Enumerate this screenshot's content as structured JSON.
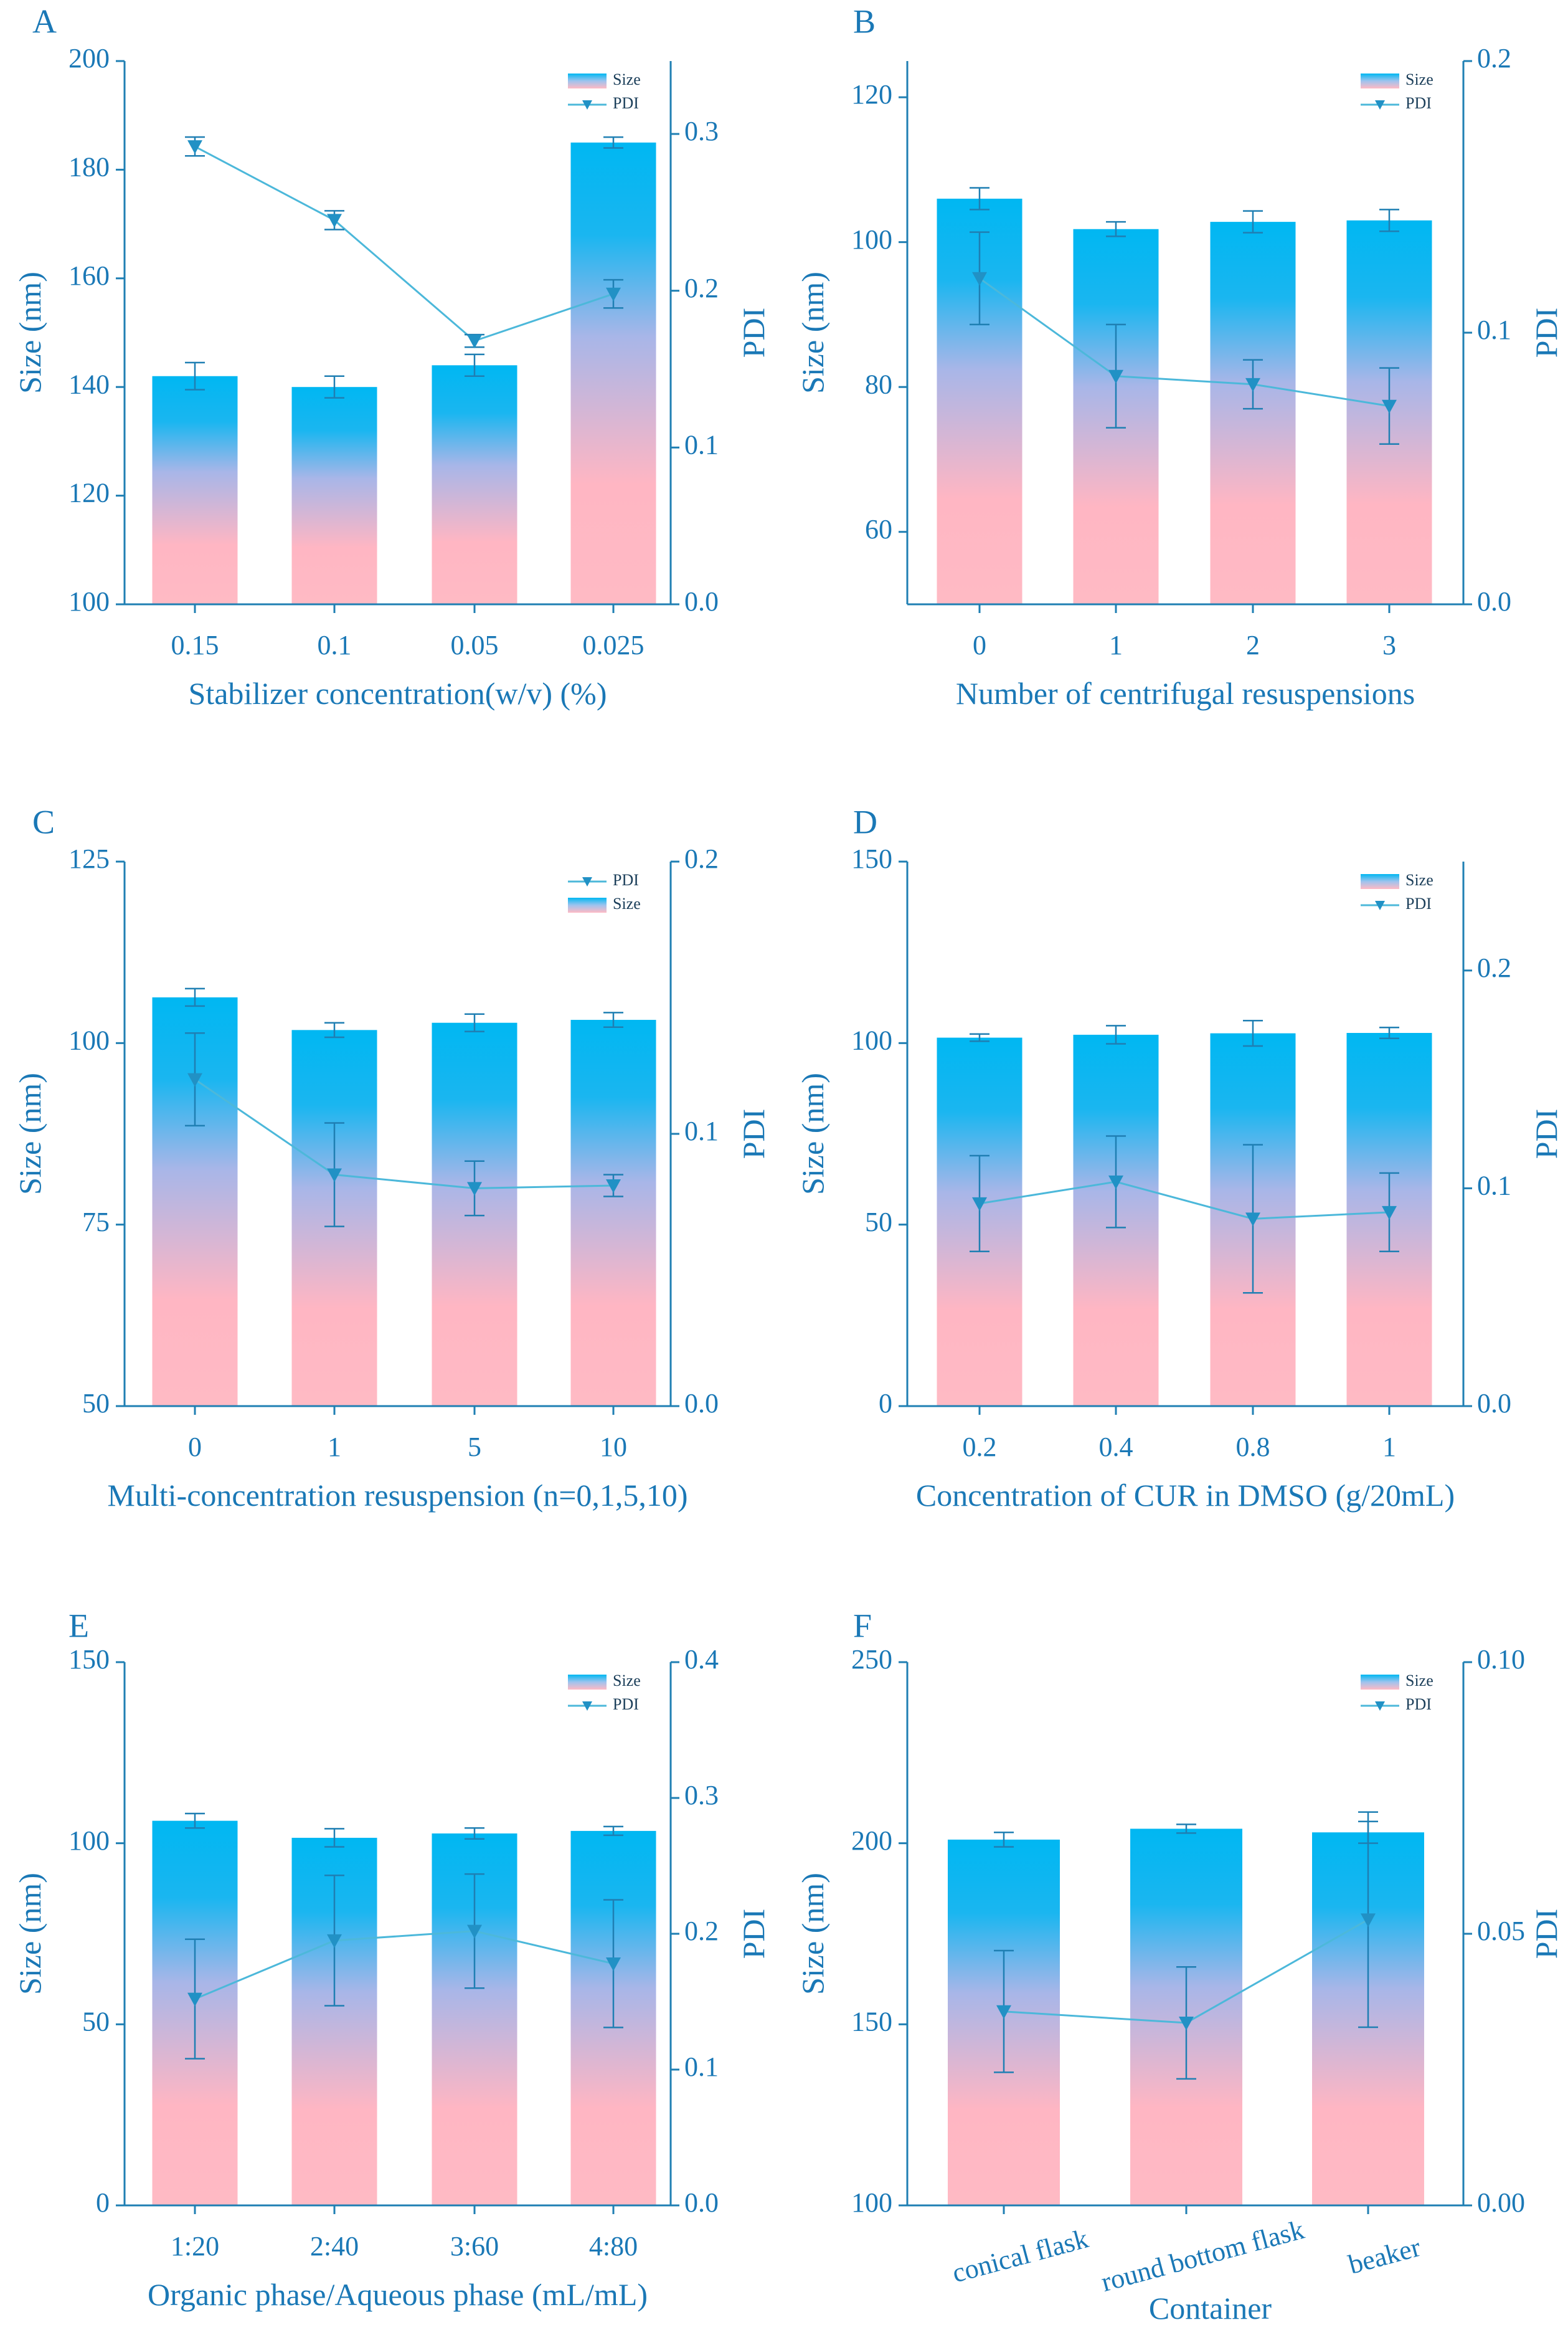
{
  "figure": {
    "size_label": "Size",
    "pdi_label": "PDI"
  },
  "colors": {
    "axis": "#1f7fb3",
    "tick_text": "#1a78b6",
    "bar_top": "#00b7f2",
    "bar_bottom": "#ffbac4",
    "line": "#4cb8da",
    "marker": "#2191c5",
    "error": "#1f7fb3"
  },
  "chart_data": [
    {
      "panel": "A",
      "type": "bar+line",
      "xlabel": "Stabilizer concentration(w/v) (%)",
      "ylabel_left": "Size (nm)",
      "ylabel_right": "PDI",
      "categories": [
        "0.15",
        "0.1",
        "0.05",
        "0.025"
      ],
      "size": [
        142,
        140,
        144,
        185
      ],
      "size_err": [
        2.5,
        2,
        2,
        1
      ],
      "pdi": [
        0.292,
        0.245,
        0.168,
        0.198
      ],
      "pdi_err": [
        0.006,
        0.006,
        0.004,
        0.009
      ],
      "ylim_left": [
        100,
        200
      ],
      "yticks_left": [
        100,
        120,
        140,
        160,
        180,
        200
      ],
      "ylim_right": [
        0,
        0.3465
      ],
      "yticks_right": [
        0.0,
        0.1,
        0.2,
        0.3
      ],
      "yticklabels_right": [
        "0.0",
        "0.1",
        "0.2",
        "0.3"
      ],
      "legend": [
        {
          "kind": "bar",
          "label": "Size"
        },
        {
          "kind": "line",
          "label": "PDI"
        }
      ]
    },
    {
      "panel": "B",
      "type": "bar+line",
      "xlabel": "Number of centrifugal resuspensions",
      "ylabel_left": "Size (nm)",
      "ylabel_right": "PDI",
      "categories": [
        "0",
        "1",
        "2",
        "3"
      ],
      "size": [
        106,
        101.8,
        102.8,
        103
      ],
      "size_err": [
        1.5,
        1,
        1.5,
        1.5
      ],
      "pdi": [
        0.12,
        0.084,
        0.081,
        0.073
      ],
      "pdi_err": [
        0.017,
        0.019,
        0.009,
        0.014
      ],
      "ylim_left": [
        50,
        125
      ],
      "yticks_left": [
        60,
        80,
        100,
        120
      ],
      "ylim_right": [
        0,
        0.2
      ],
      "yticks_right": [
        0.0,
        0.1,
        0.2
      ],
      "yticklabels_right": [
        "0.0",
        "0.1",
        "0.2"
      ],
      "legend": [
        {
          "kind": "bar",
          "label": "Size"
        },
        {
          "kind": "line",
          "label": "PDI"
        }
      ]
    },
    {
      "panel": "C",
      "type": "bar+line",
      "xlabel": "Multi-concentration resuspension (n=0,1,5,10)",
      "ylabel_left": "Size (nm)",
      "ylabel_right": "PDI",
      "categories": [
        "0",
        "1",
        "5",
        "10"
      ],
      "size": [
        106.3,
        101.8,
        102.8,
        103.2
      ],
      "size_err": [
        1.2,
        1,
        1.2,
        1
      ],
      "pdi": [
        0.12,
        0.085,
        0.08,
        0.081
      ],
      "pdi_err": [
        0.017,
        0.019,
        0.01,
        0.004
      ],
      "ylim_left": [
        50,
        125
      ],
      "yticks_left": [
        50,
        75,
        100,
        125
      ],
      "ylim_right": [
        0,
        0.2
      ],
      "yticks_right": [
        0.0,
        0.1,
        0.2
      ],
      "yticklabels_right": [
        "0.0",
        "0.1",
        "0.2"
      ],
      "legend": [
        {
          "kind": "line",
          "label": "PDI"
        },
        {
          "kind": "bar",
          "label": "Size"
        }
      ]
    },
    {
      "panel": "D",
      "type": "bar+line",
      "xlabel": "Concentration of CUR in DMSO (g/20mL)",
      "ylabel_left": "Size (nm)",
      "ylabel_right": "PDI",
      "categories": [
        "0.2",
        "0.4",
        "0.8",
        "1"
      ],
      "size": [
        101.5,
        102.3,
        102.7,
        102.8
      ],
      "size_err": [
        1,
        2.5,
        3.5,
        1.5
      ],
      "pdi": [
        0.093,
        0.103,
        0.086,
        0.089
      ],
      "pdi_err": [
        0.022,
        0.021,
        0.034,
        0.018
      ],
      "ylim_left": [
        0,
        150
      ],
      "yticks_left": [
        0,
        50,
        100,
        150
      ],
      "ylim_right": [
        0,
        0.25
      ],
      "yticks_right": [
        0.0,
        0.1,
        0.2
      ],
      "yticklabels_right": [
        "0.0",
        "0.1",
        "0.2"
      ],
      "legend": [
        {
          "kind": "bar",
          "label": "Size"
        },
        {
          "kind": "line",
          "label": "PDI"
        }
      ]
    },
    {
      "panel": "E",
      "type": "bar+line",
      "xlabel": "Organic phase/Aqueous phase (mL/mL)",
      "ylabel_left": "Size (nm)",
      "ylabel_right": "PDI",
      "categories": [
        "1:20",
        "2:40",
        "3:60",
        "4:80"
      ],
      "size": [
        106.2,
        101.5,
        102.7,
        103.4
      ],
      "size_err": [
        2,
        2.5,
        1.5,
        1.2
      ],
      "pdi": [
        0.152,
        0.195,
        0.202,
        0.178
      ],
      "pdi_err": [
        0.044,
        0.048,
        0.042,
        0.047
      ],
      "ylim_left": [
        0,
        150
      ],
      "yticks_left": [
        0,
        50,
        100,
        150
      ],
      "ylim_right": [
        0,
        0.4
      ],
      "yticks_right": [
        0.0,
        0.1,
        0.2,
        0.3,
        0.4
      ],
      "yticklabels_right": [
        "0.0",
        "0.1",
        "0.2",
        "0.3",
        "0.4"
      ],
      "legend": [
        {
          "kind": "bar",
          "label": "Size"
        },
        {
          "kind": "line",
          "label": "PDI"
        }
      ]
    },
    {
      "panel": "F",
      "type": "bar+line",
      "xlabel": "Container",
      "ylabel_left": "Size (nm)",
      "ylabel_right": "PDI",
      "categories": [
        "conical flask",
        "round bottom flask",
        "beaker"
      ],
      "size": [
        201,
        204,
        203
      ],
      "size_err": [
        2,
        1.2,
        3
      ],
      "pdi": [
        0.0357,
        0.0336,
        0.0526
      ],
      "pdi_err": [
        0.0112,
        0.0103,
        0.0198
      ],
      "ylim_left": [
        100,
        250
      ],
      "yticks_left": [
        100,
        150,
        200,
        250
      ],
      "ylim_right": [
        0,
        0.1
      ],
      "yticks_right": [
        0.0,
        0.05,
        0.1
      ],
      "yticklabels_right": [
        "0.00",
        "0.05",
        "0.10"
      ],
      "legend": [
        {
          "kind": "bar",
          "label": "Size"
        },
        {
          "kind": "line",
          "label": "PDI"
        }
      ]
    }
  ]
}
